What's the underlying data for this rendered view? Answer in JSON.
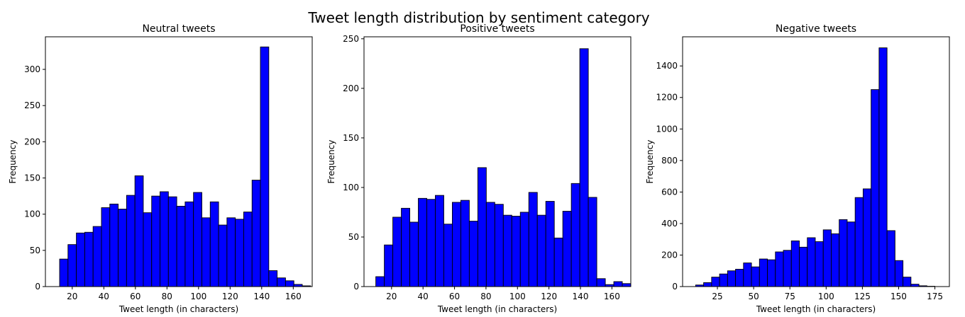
{
  "figure": {
    "suptitle": "Tweet length distribution by sentiment category"
  },
  "chart_data": [
    {
      "type": "bar",
      "title": "Neutral tweets",
      "xlabel": "Tweet length (in characters)",
      "ylabel": "Frequency",
      "xlim": [
        3,
        172
      ],
      "ylim": [
        0,
        345
      ],
      "xticks": [
        20,
        40,
        60,
        80,
        100,
        120,
        140,
        160
      ],
      "yticks": [
        0,
        50,
        100,
        150,
        200,
        250,
        300
      ],
      "bin_start": 12,
      "bin_width": 5.3,
      "values": [
        38,
        58,
        74,
        75,
        83,
        109,
        114,
        107,
        126,
        153,
        102,
        125,
        131,
        124,
        111,
        117,
        130,
        95,
        117,
        85,
        95,
        93,
        103,
        147,
        331,
        22,
        12,
        8,
        3,
        1
      ],
      "color": "#0000ff",
      "edgecolor": "#000000"
    },
    {
      "type": "bar",
      "title": "Positive tweets",
      "xlabel": "Tweet length (in characters)",
      "ylabel": "Frequency",
      "xlim": [
        2.5,
        172
      ],
      "ylim": [
        0,
        252
      ],
      "xticks": [
        20,
        40,
        60,
        80,
        100,
        120,
        140,
        160
      ],
      "yticks": [
        0,
        50,
        100,
        150,
        200,
        250
      ],
      "bin_start": 10,
      "bin_width": 5.4,
      "values": [
        10,
        42,
        70,
        79,
        65,
        89,
        88,
        92,
        63,
        85,
        87,
        66,
        120,
        85,
        83,
        72,
        71,
        75,
        95,
        72,
        86,
        49,
        76,
        104,
        240,
        90,
        8,
        2,
        5,
        3
      ],
      "color": "#0000ff",
      "edgecolor": "#000000"
    },
    {
      "type": "bar",
      "title": "Negative tweets",
      "xlabel": "Tweet length (in characters)",
      "ylabel": "Frequency",
      "xlim": [
        1,
        185
      ],
      "ylim": [
        0,
        1585
      ],
      "xticks": [
        25,
        50,
        75,
        100,
        125,
        150,
        175
      ],
      "yticks": [
        0,
        200,
        400,
        600,
        800,
        1000,
        1200,
        1400
      ],
      "bin_start": 10,
      "bin_width": 5.5,
      "values": [
        10,
        25,
        60,
        80,
        100,
        110,
        150,
        125,
        175,
        170,
        220,
        230,
        290,
        250,
        310,
        285,
        360,
        335,
        425,
        410,
        565,
        620,
        1250,
        1515,
        355,
        165,
        60,
        15,
        5,
        2
      ],
      "color": "#0000ff",
      "edgecolor": "#000000"
    }
  ]
}
